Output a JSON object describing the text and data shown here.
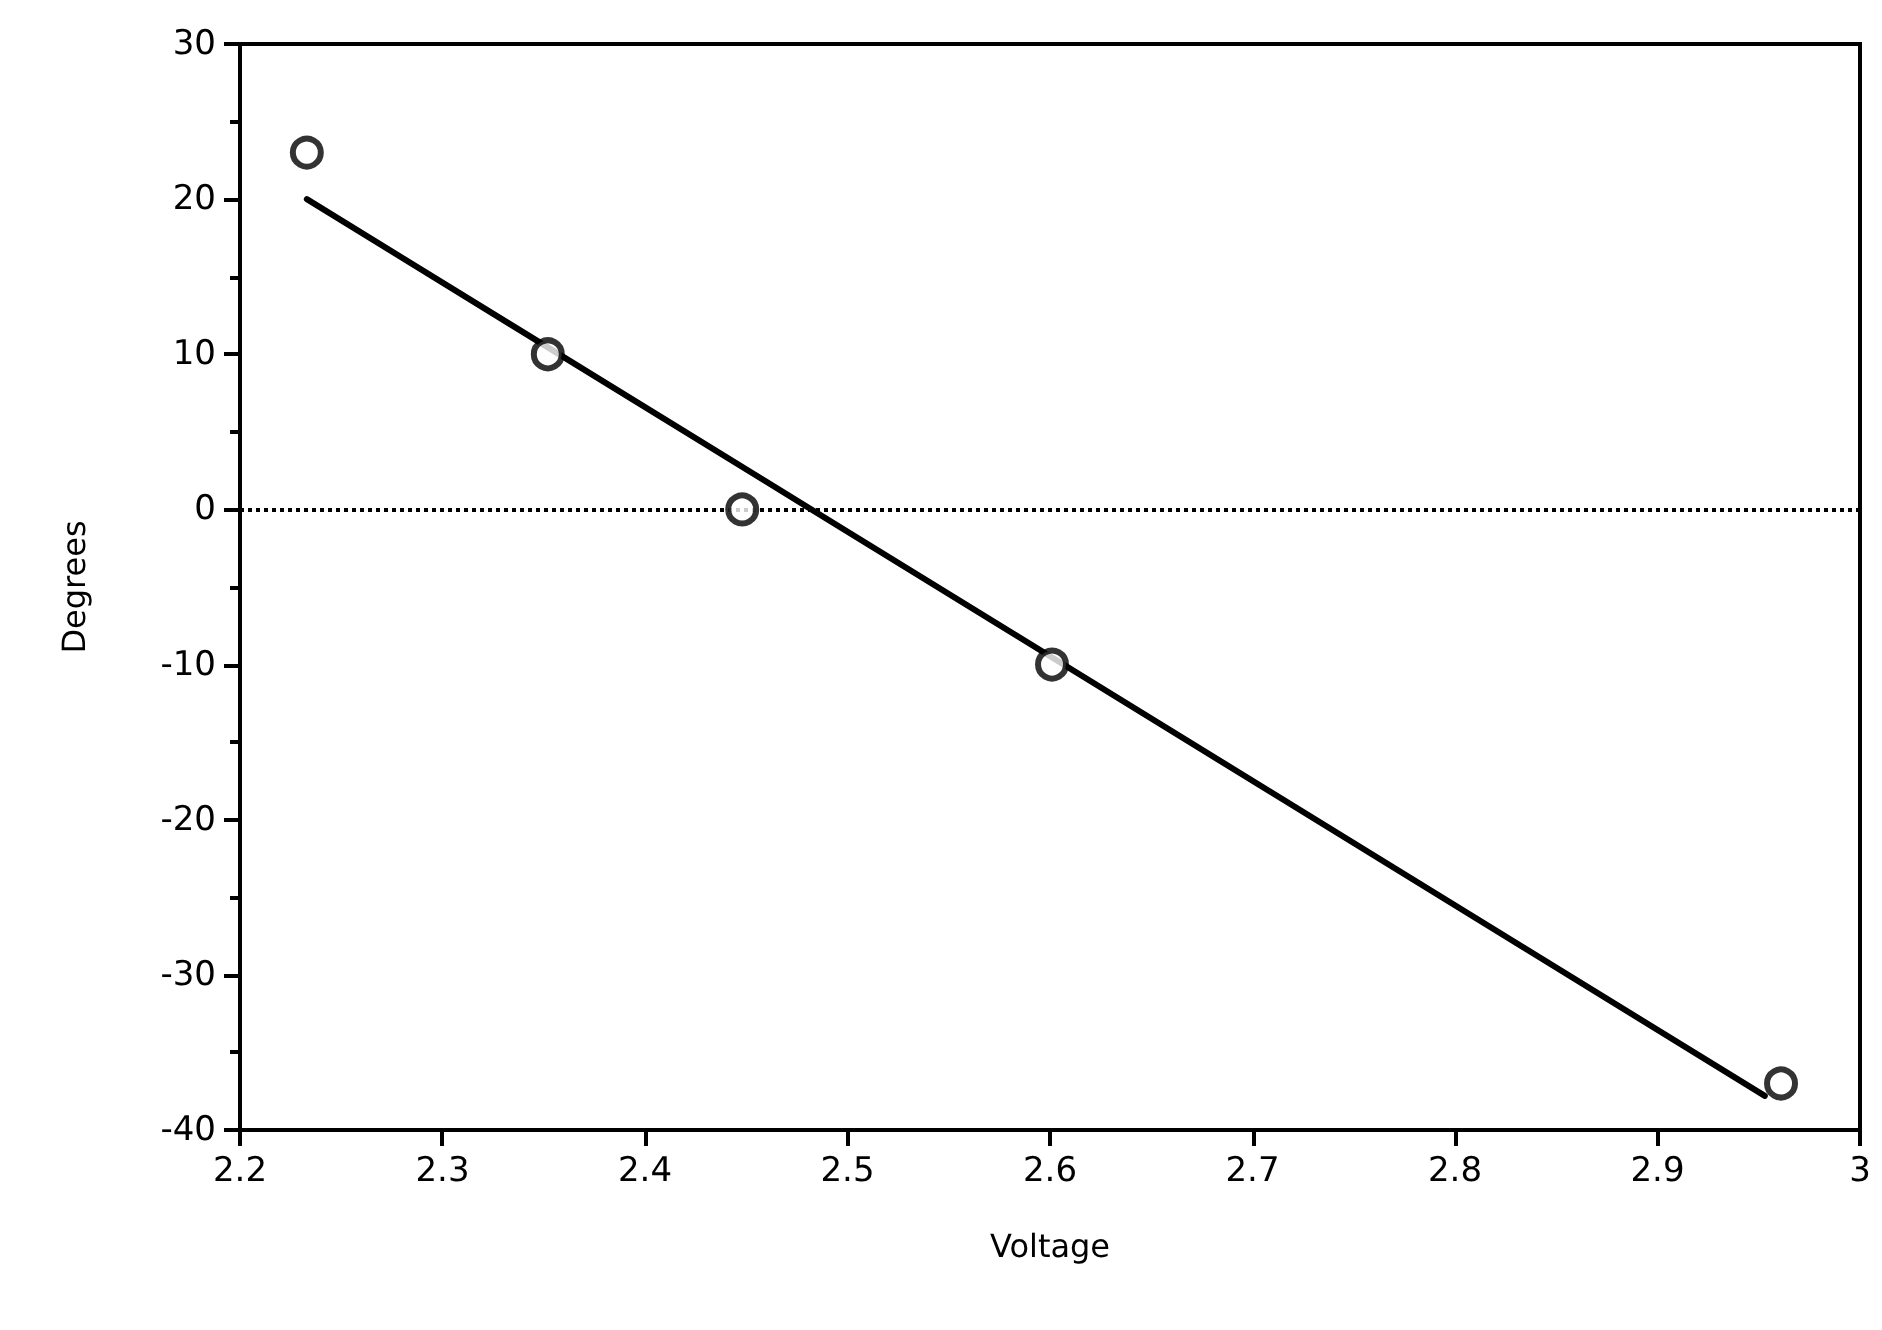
{
  "chart_data": {
    "type": "scatter",
    "xlabel": "Voltage",
    "ylabel": "Degrees",
    "xlim": [
      2.2,
      3
    ],
    "xticks": [
      2.2,
      2.3,
      2.4,
      2.5,
      2.6,
      2.7,
      2.8,
      2.9,
      3
    ],
    "ylim": [
      -40,
      30
    ],
    "yticks": [
      -40,
      -30,
      -20,
      -10,
      0,
      10,
      20,
      30
    ],
    "grid": false,
    "series": [
      {
        "color": "#000000",
        "marker": "circle",
        "x": [
          2.233,
          2.352,
          2.448,
          2.601,
          2.961
        ],
        "values": [
          23,
          10,
          0,
          -10,
          -37
        ]
      },
      {
        "type": "line",
        "color": "#000000",
        "marker": "none",
        "line_style": "solid",
        "x": [
          2.233,
          2.953
        ],
        "values": [
          20,
          -37.8
        ]
      }
    ],
    "ref_lines": [
      {
        "axis": "y",
        "value": 0,
        "color": "#000000",
        "line_style": "dotted"
      }
    ]
  }
}
